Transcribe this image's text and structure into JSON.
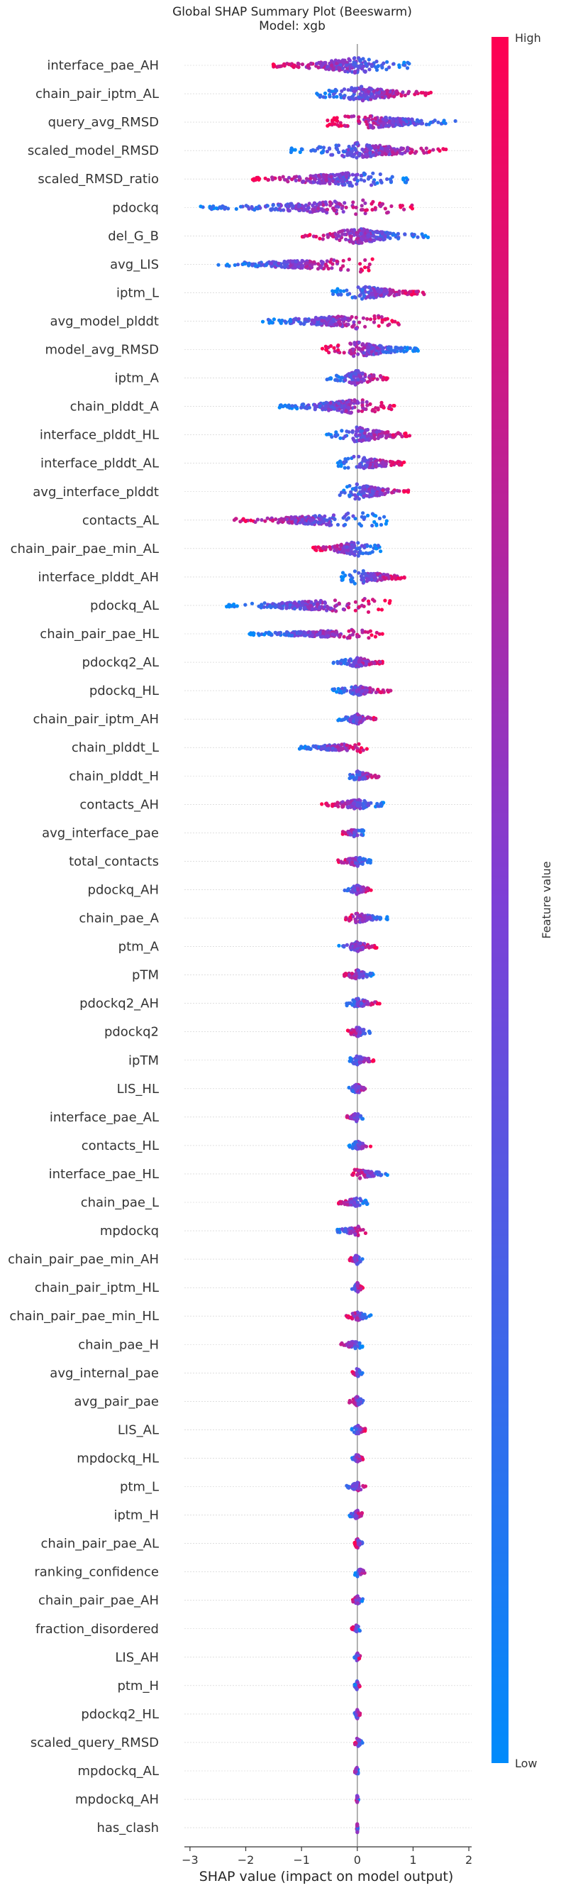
{
  "chart_data": {
    "type": "scatter",
    "subtype": "beeswarm",
    "title": "Global SHAP Summary Plot (Beeswarm)",
    "subtitle": "Model: xgb",
    "xlabel": "SHAP value (impact on model output)",
    "xlim": [
      -3.1,
      2.05
    ],
    "xticks": [
      -3,
      -2,
      -1,
      0,
      1,
      2
    ],
    "colorbar": {
      "label": "Feature value",
      "high_label": "High",
      "low_label": "Low",
      "low_color": "#008bfb",
      "high_color": "#ff0051"
    },
    "features": [
      {
        "name": "interface_pae_AH",
        "range": [
          -1.55,
          1.0
        ],
        "mode": "hi_neg"
      },
      {
        "name": "chain_pair_iptm_AL",
        "range": [
          -0.75,
          1.35
        ],
        "mode": "hi_pos"
      },
      {
        "name": "query_avg_RMSD",
        "range": [
          -0.55,
          1.8
        ],
        "mode": "lo_pos"
      },
      {
        "name": "scaled_model_RMSD",
        "range": [
          -1.2,
          1.7
        ],
        "mode": "hi_pos"
      },
      {
        "name": "scaled_RMSD_ratio",
        "range": [
          -1.9,
          0.95
        ],
        "mode": "hi_neg"
      },
      {
        "name": "pdockq",
        "range": [
          -2.85,
          1.0
        ],
        "mode": "hi_pos"
      },
      {
        "name": "del_G_B",
        "range": [
          -1.0,
          1.3
        ],
        "mode": "lo_pos"
      },
      {
        "name": "avg_LIS",
        "range": [
          -2.5,
          0.3
        ],
        "mode": "hi_pos"
      },
      {
        "name": "iptm_L",
        "range": [
          -0.45,
          1.2
        ],
        "mode": "hi_pos"
      },
      {
        "name": "avg_model_plddt",
        "range": [
          -1.75,
          0.75
        ],
        "mode": "hi_pos"
      },
      {
        "name": "model_avg_RMSD",
        "range": [
          -0.65,
          1.1
        ],
        "mode": "lo_pos"
      },
      {
        "name": "iptm_A",
        "range": [
          -0.55,
          0.55
        ],
        "mode": "hi_pos"
      },
      {
        "name": "chain_plddt_A",
        "range": [
          -1.4,
          0.7
        ],
        "mode": "hi_pos"
      },
      {
        "name": "interface_plddt_HL",
        "range": [
          -0.55,
          0.95
        ],
        "mode": "hi_pos"
      },
      {
        "name": "interface_plddt_AL",
        "range": [
          -0.35,
          0.85
        ],
        "mode": "hi_pos"
      },
      {
        "name": "avg_interface_plddt",
        "range": [
          -0.4,
          0.95
        ],
        "mode": "hi_pos"
      },
      {
        "name": "contacts_AL",
        "range": [
          -2.25,
          0.55
        ],
        "mode": "hi_neg"
      },
      {
        "name": "chain_pair_pae_min_AL",
        "range": [
          -0.8,
          0.45
        ],
        "mode": "hi_neg"
      },
      {
        "name": "interface_plddt_AH",
        "range": [
          -0.3,
          0.85
        ],
        "mode": "hi_pos"
      },
      {
        "name": "pdockq_AL",
        "range": [
          -2.35,
          0.6
        ],
        "mode": "hi_pos"
      },
      {
        "name": "chain_pair_pae_HL",
        "range": [
          -1.95,
          0.5
        ],
        "mode": "hi_pos"
      },
      {
        "name": "pdockq2_AL",
        "range": [
          -0.45,
          0.5
        ],
        "mode": "hi_pos"
      },
      {
        "name": "pdockq_HL",
        "range": [
          -0.45,
          0.6
        ],
        "mode": "hi_pos"
      },
      {
        "name": "chain_pair_iptm_AH",
        "range": [
          -0.35,
          0.35
        ],
        "mode": "hi_pos"
      },
      {
        "name": "chain_plddt_L",
        "range": [
          -1.05,
          0.2
        ],
        "mode": "hi_pos"
      },
      {
        "name": "chain_plddt_H",
        "range": [
          -0.2,
          0.4
        ],
        "mode": "hi_pos"
      },
      {
        "name": "contacts_AH",
        "range": [
          -0.65,
          0.5
        ],
        "mode": "hi_neg"
      },
      {
        "name": "avg_interface_pae",
        "range": [
          -0.3,
          0.15
        ],
        "mode": "hi_neg"
      },
      {
        "name": "total_contacts",
        "range": [
          -0.35,
          0.25
        ],
        "mode": "hi_neg"
      },
      {
        "name": "pdockq_AH",
        "range": [
          -0.25,
          0.25
        ],
        "mode": "hi_pos"
      },
      {
        "name": "chain_pae_A",
        "range": [
          -0.25,
          0.55
        ],
        "mode": "lo_pos"
      },
      {
        "name": "ptm_A",
        "range": [
          -0.35,
          0.35
        ],
        "mode": "hi_pos"
      },
      {
        "name": "pTM",
        "range": [
          -0.25,
          0.3
        ],
        "mode": "hi_neg"
      },
      {
        "name": "pdockq2_AH",
        "range": [
          -0.2,
          0.4
        ],
        "mode": "hi_pos"
      },
      {
        "name": "pdockq2",
        "range": [
          -0.2,
          0.25
        ],
        "mode": "lo_pos"
      },
      {
        "name": "ipTM",
        "range": [
          -0.15,
          0.3
        ],
        "mode": "hi_pos"
      },
      {
        "name": "LIS_HL",
        "range": [
          -0.2,
          0.2
        ],
        "mode": "hi_pos"
      },
      {
        "name": "interface_pae_AL",
        "range": [
          -0.2,
          0.1
        ],
        "mode": "hi_neg"
      },
      {
        "name": "contacts_HL",
        "range": [
          -0.15,
          0.25
        ],
        "mode": "hi_pos"
      },
      {
        "name": "interface_pae_HL",
        "range": [
          -0.1,
          0.55
        ],
        "mode": "lo_pos"
      },
      {
        "name": "chain_pae_L",
        "range": [
          -0.35,
          0.2
        ],
        "mode": "hi_neg"
      },
      {
        "name": "mpdockq",
        "range": [
          -0.4,
          0.15
        ],
        "mode": "hi_pos"
      },
      {
        "name": "chain_pair_pae_min_AH",
        "range": [
          -0.15,
          0.1
        ],
        "mode": "hi_neg"
      },
      {
        "name": "chain_pair_iptm_HL",
        "range": [
          -0.1,
          0.1
        ],
        "mode": "hi_pos"
      },
      {
        "name": "chain_pair_pae_min_HL",
        "range": [
          -0.2,
          0.25
        ],
        "mode": "lo_pos"
      },
      {
        "name": "chain_pae_H",
        "range": [
          -0.3,
          0.1
        ],
        "mode": "hi_neg"
      },
      {
        "name": "avg_internal_pae",
        "range": [
          -0.1,
          0.1
        ],
        "mode": "hi_neg"
      },
      {
        "name": "avg_pair_pae",
        "range": [
          -0.15,
          0.15
        ],
        "mode": "hi_neg"
      },
      {
        "name": "LIS_AL",
        "range": [
          -0.1,
          0.15
        ],
        "mode": "hi_pos"
      },
      {
        "name": "mpdockq_HL",
        "range": [
          -0.1,
          0.1
        ],
        "mode": "hi_pos"
      },
      {
        "name": "ptm_L",
        "range": [
          -0.2,
          0.15
        ],
        "mode": "hi_pos"
      },
      {
        "name": "iptm_H",
        "range": [
          -0.15,
          0.1
        ],
        "mode": "hi_pos"
      },
      {
        "name": "chain_pair_pae_AL",
        "range": [
          -0.05,
          0.1
        ],
        "mode": "hi_neg"
      },
      {
        "name": "ranking_confidence",
        "range": [
          -0.05,
          0.15
        ],
        "mode": "hi_pos"
      },
      {
        "name": "chain_pair_pae_AH",
        "range": [
          -0.1,
          0.1
        ],
        "mode": "hi_neg"
      },
      {
        "name": "fraction_disordered",
        "range": [
          -0.1,
          0.05
        ],
        "mode": "lo_pos"
      },
      {
        "name": "LIS_AH",
        "range": [
          -0.05,
          0.05
        ],
        "mode": "hi_pos"
      },
      {
        "name": "ptm_H",
        "range": [
          -0.05,
          0.05
        ],
        "mode": "hi_pos"
      },
      {
        "name": "pdockq2_HL",
        "range": [
          -0.05,
          0.05
        ],
        "mode": "hi_pos"
      },
      {
        "name": "scaled_query_RMSD",
        "range": [
          -0.05,
          0.1
        ],
        "mode": "lo_pos"
      },
      {
        "name": "mpdockq_AL",
        "range": [
          -0.05,
          0.02
        ],
        "mode": "hi_neg"
      },
      {
        "name": "mpdockq_AH",
        "range": [
          -0.02,
          0.02
        ],
        "mode": "lo_pos"
      },
      {
        "name": "has_clash",
        "range": [
          -0.01,
          0.01
        ],
        "mode": "lo_pos"
      }
    ]
  }
}
